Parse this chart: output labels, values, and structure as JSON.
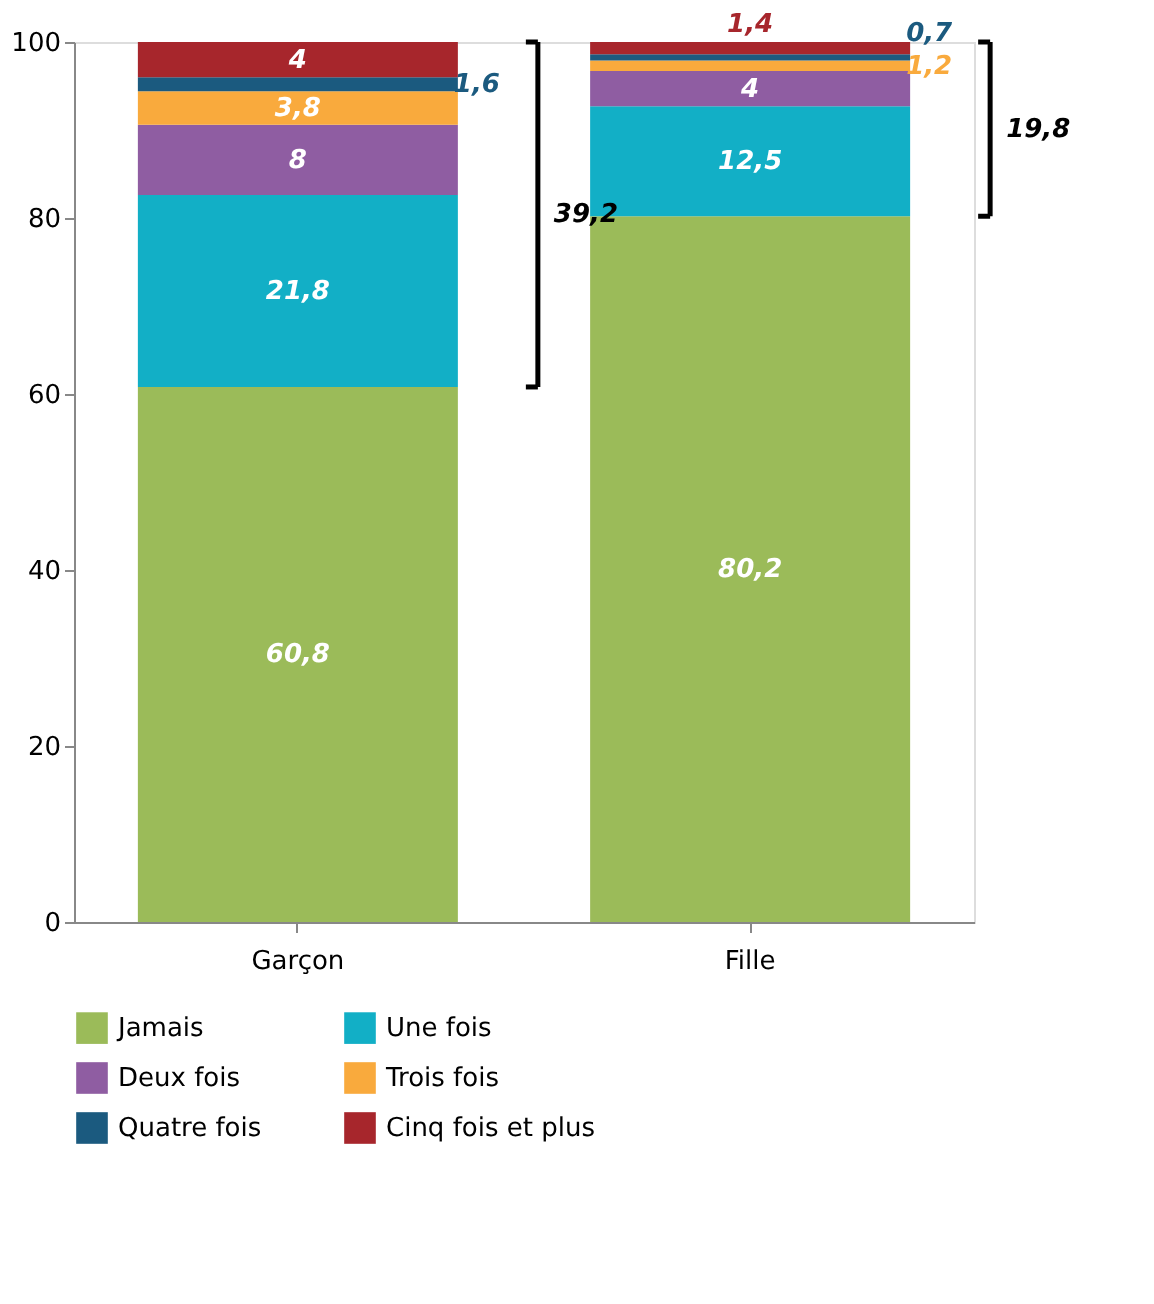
{
  "chart_data": {
    "type": "bar",
    "stacked": true,
    "categories": [
      "Garçon",
      "Fille"
    ],
    "series": [
      {
        "name": "Jamais",
        "color": "#9bbb59",
        "values": [
          60.8,
          80.2
        ],
        "value_labels": [
          "60,8",
          "80,2"
        ]
      },
      {
        "name": "Une fois",
        "color": "#12afc6",
        "values": [
          21.8,
          12.5
        ],
        "value_labels": [
          "21,8",
          "12,5"
        ]
      },
      {
        "name": "Deux fois",
        "color": "#8f5da2",
        "values": [
          8,
          4
        ],
        "value_labels": [
          "8",
          "4"
        ]
      },
      {
        "name": "Trois fois",
        "color": "#f9aa3d",
        "values": [
          3.8,
          1.2
        ],
        "value_labels": [
          "3,8",
          "1,2"
        ]
      },
      {
        "name": "Quatre fois",
        "color": "#1b5a7f",
        "values": [
          1.6,
          0.7
        ],
        "value_labels": [
          "1,6",
          "0,7"
        ]
      },
      {
        "name": "Cinq fois et plus",
        "color": "#a7262c",
        "values": [
          4,
          1.4
        ],
        "value_labels": [
          "4",
          "1,4"
        ]
      }
    ],
    "annotations": [
      "39,2",
      "19,8"
    ],
    "ylim": [
      0,
      100
    ],
    "yticks": [
      0,
      20,
      40,
      60,
      80,
      100
    ],
    "grid": false,
    "legend": "bottom"
  }
}
